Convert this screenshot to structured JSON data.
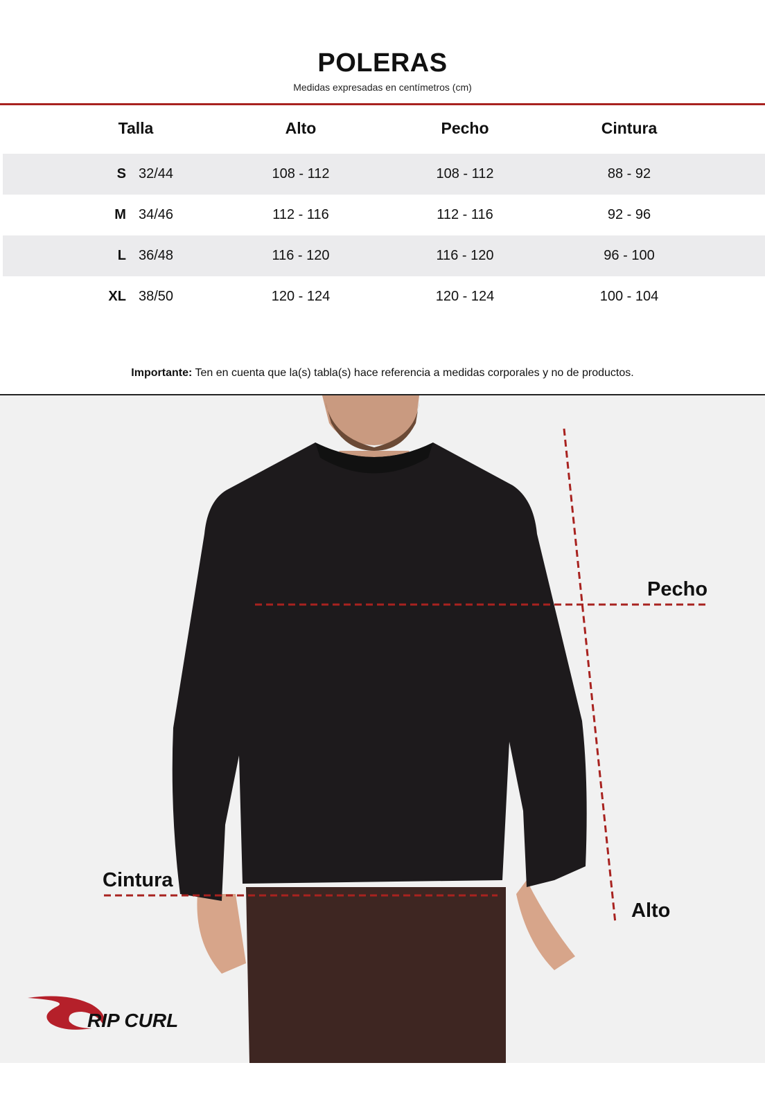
{
  "header": {
    "title": "POLERAS",
    "subtitle": "Medidas expresadas en centímetros (cm)"
  },
  "table": {
    "columns": [
      "Talla",
      "Alto",
      "Pecho",
      "Cintura"
    ],
    "rows": [
      {
        "size": "S",
        "equiv": "32/44",
        "alto": "108 - 112",
        "pecho": "108 - 112",
        "cintura": "88 - 92"
      },
      {
        "size": "M",
        "equiv": "34/46",
        "alto": "112 - 116",
        "pecho": "112 - 116",
        "cintura": "92 - 96"
      },
      {
        "size": "L",
        "equiv": "36/48",
        "alto": "116 - 120",
        "pecho": "116 - 120",
        "cintura": "96 - 100"
      },
      {
        "size": "XL",
        "equiv": "38/50",
        "alto": "120 - 124",
        "pecho": "120 - 124",
        "cintura": "100 - 104"
      }
    ]
  },
  "note": {
    "bold": "Importante:",
    "text": " Ten en cuenta que la(s) tabla(s) hace referencia a medidas corporales y no de productos."
  },
  "diagram": {
    "labels": {
      "pecho": "Pecho",
      "cintura": "Cintura",
      "alto": "Alto"
    },
    "line_color": "#a8221f"
  },
  "logo": {
    "text": "RIP CURL",
    "color": "#b5202a"
  }
}
